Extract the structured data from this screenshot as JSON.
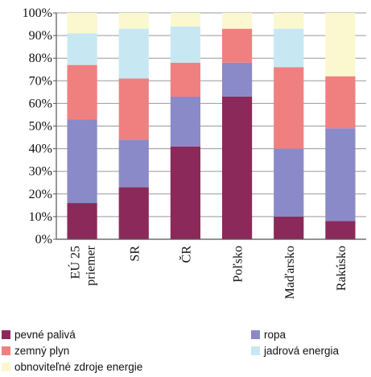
{
  "chart_data": {
    "type": "bar",
    "stacked": true,
    "percent": true,
    "categories": [
      [
        "EÚ 25",
        "priemer"
      ],
      [
        "SR"
      ],
      [
        "ČR"
      ],
      [
        "Poľsko"
      ],
      [
        "Maďarsko"
      ],
      [
        "Rakúsko"
      ]
    ],
    "yticks": [
      "0%",
      "10%",
      "20%",
      "30%",
      "40%",
      "50%",
      "60%",
      "70%",
      "80%",
      "90%",
      "100%"
    ],
    "ylim": [
      0,
      100
    ],
    "grid": true,
    "legend_position": "bottom",
    "series": [
      {
        "name": "pevné palivá",
        "color": "#8b2a5a",
        "values": [
          16,
          23,
          41,
          63,
          10,
          8
        ]
      },
      {
        "name": "ropa",
        "color": "#8b8ac8",
        "values": [
          37,
          21,
          22,
          15,
          30,
          41
        ]
      },
      {
        "name": "zemný plyn",
        "color": "#f08080",
        "values": [
          24,
          27,
          15,
          15,
          36,
          23
        ]
      },
      {
        "name": "jadrová energia",
        "color": "#c7e8f3",
        "values": [
          14,
          22,
          16,
          0,
          17,
          0
        ]
      },
      {
        "name": "obnoviteľné zdroje energie",
        "color": "#fbf8cf",
        "values": [
          9,
          7,
          6,
          7,
          7,
          28
        ]
      }
    ]
  }
}
